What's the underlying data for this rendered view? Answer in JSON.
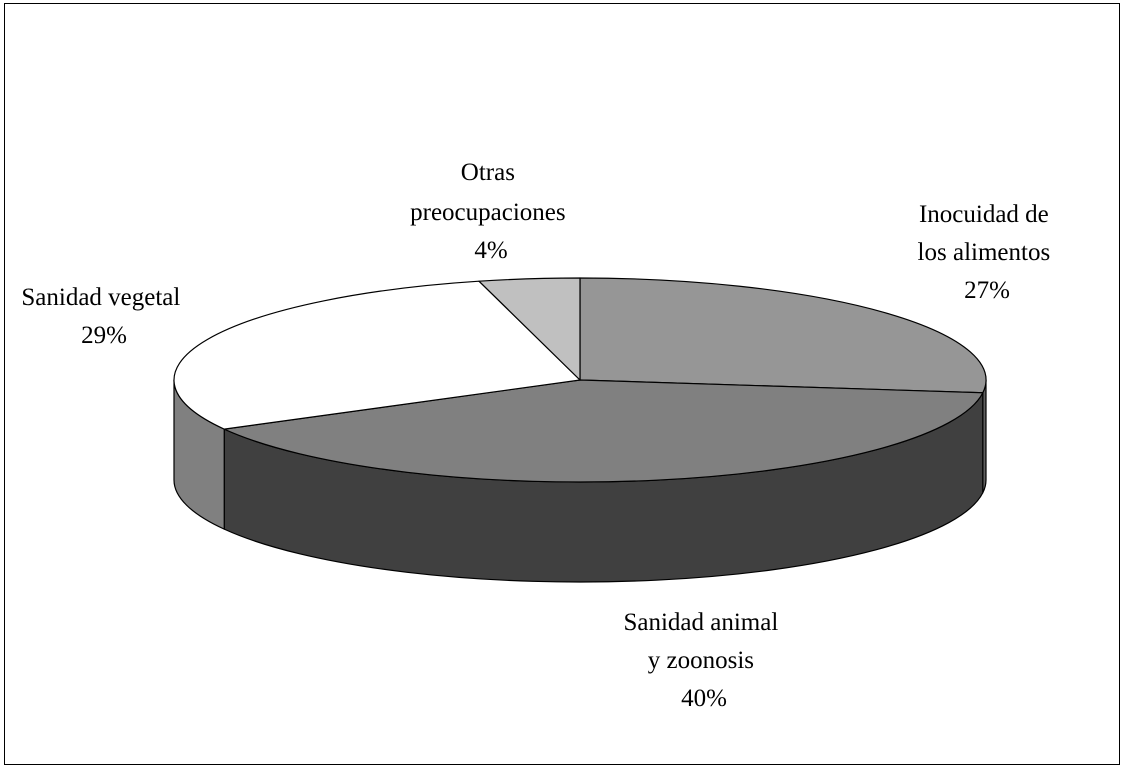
{
  "chart_data": {
    "type": "pie",
    "title": "",
    "style": "3d",
    "legend": "none",
    "slices": [
      {
        "label": [
          "Inocuidad de",
          "los alimentos"
        ],
        "pct_label": "27%",
        "value": 27,
        "color": "#969696"
      },
      {
        "label": [
          "Sanidad animal",
          "y zoonosis"
        ],
        "pct_label": "40%",
        "value": 40,
        "color": "#808080"
      },
      {
        "label": [
          "Sanidad vegetal"
        ],
        "pct_label": "29%",
        "value": 29,
        "color": "#ffffff"
      },
      {
        "label": [
          "Otras",
          "preocupaciones"
        ],
        "pct_label": "4%",
        "value": 4,
        "color": "#c0c0c0"
      }
    ],
    "side_colors": {
      "Inocuidad de los alimentos": "#606060",
      "Sanidad animal y zoonosis": "#404040",
      "Sanidad vegetal": "#808080"
    }
  }
}
